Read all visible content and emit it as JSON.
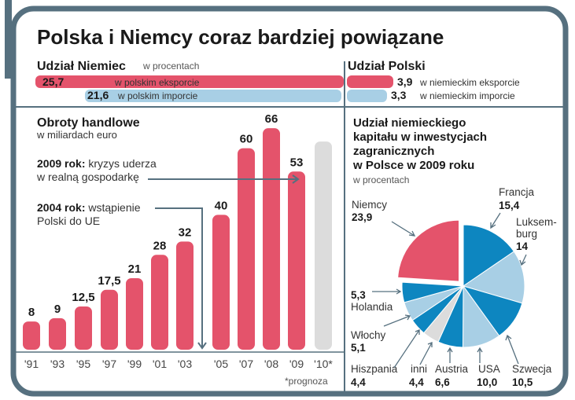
{
  "title": "Polska i Niemcy coraz bardziej powiązane",
  "colors": {
    "red": "#e4536b",
    "dark_blue": "#0d86c0",
    "light_blue": "#a8cfe5",
    "gray": "#dcdcdc",
    "frame": "#56707f"
  },
  "germany_share": {
    "title": "Udział Niemiec",
    "unit": "w procentach",
    "export": {
      "value": "25,7",
      "label": "w polskim eksporcie",
      "percent": 25.7
    },
    "import": {
      "value": "21,6",
      "label": "w polskim imporcie",
      "percent": 21.6
    }
  },
  "poland_share": {
    "title": "Udział Polski",
    "export": {
      "value": "3,9",
      "label": "w niemieckim eksporcie",
      "percent": 3.9
    },
    "import": {
      "value": "3,3",
      "label": "w niemieckim imporcie",
      "percent": 3.3
    }
  },
  "chart_data": [
    {
      "type": "bar",
      "title": "Obroty handlowe",
      "subtitle": "w miliardach euro",
      "categories": [
        "'91",
        "'93",
        "'95",
        "'97",
        "'99",
        "'01",
        "'03",
        "'05",
        "'07",
        "'08",
        "'09",
        "'10*"
      ],
      "values": [
        8,
        9,
        12.5,
        17.5,
        21,
        28,
        32,
        40,
        60,
        66,
        53,
        62
      ],
      "value_labels": [
        "8",
        "9",
        "12,5",
        "17,5",
        "21",
        "28",
        "32",
        "40",
        "60",
        "66",
        "53",
        ""
      ],
      "forecast_index": 11,
      "footnote": "*prognoza",
      "annotations": [
        {
          "bold": "2009 rok:",
          "text1": "kryzys uderza",
          "text2": "w realną gospodarkę",
          "target": "'09"
        },
        {
          "bold": "2004 rok:",
          "text1": "wstąpienie",
          "text2": "Polski do UE",
          "target": "2004"
        }
      ]
    },
    {
      "type": "pie",
      "title_lines": [
        "Udział niemieckiego",
        "kapitału w inwestycjach",
        "zagranicznych",
        "w Polsce w 2009 roku"
      ],
      "subtitle": "w procentach",
      "slices": [
        {
          "name": "Francja",
          "label": "15,4",
          "value": 15.4,
          "color": "dark_blue"
        },
        {
          "name": "Luksemburg",
          "name_lines": [
            "Luksem-",
            "burg"
          ],
          "label": "14",
          "value": 14,
          "color": "light_blue"
        },
        {
          "name": "Szwecja",
          "label": "10,5",
          "value": 10.5,
          "color": "dark_blue"
        },
        {
          "name": "USA",
          "label": "10,0",
          "value": 10.0,
          "color": "light_blue"
        },
        {
          "name": "Austria",
          "label": "6,6",
          "value": 6.6,
          "color": "dark_blue"
        },
        {
          "name": "inni",
          "label": "4,4",
          "value": 4.4,
          "color": "gray"
        },
        {
          "name": "Hiszpania",
          "label": "4,4",
          "value": 4.4,
          "color": "dark_blue"
        },
        {
          "name": "Włochy",
          "label": "5,1",
          "value": 5.1,
          "color": "light_blue"
        },
        {
          "name": "Holandia",
          "label": "5,3",
          "value": 5.3,
          "color": "dark_blue"
        },
        {
          "name": "Niemcy",
          "label": "23,9",
          "value": 23.9,
          "color": "red",
          "exploded": true
        }
      ]
    }
  ]
}
